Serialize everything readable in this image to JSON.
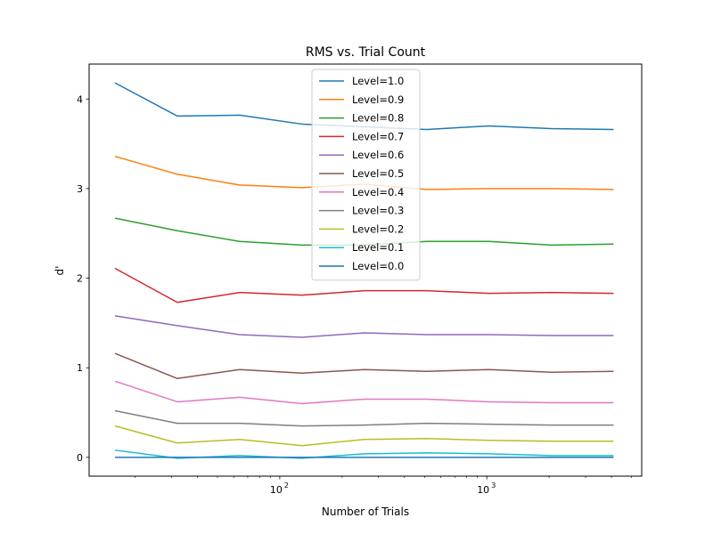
{
  "chart_data": {
    "type": "line",
    "title": "RMS vs. Trial Count",
    "xlabel": "Number of Trials",
    "ylabel": "d'",
    "xscale": "log",
    "xlim": [
      12,
      5600
    ],
    "ylim": [
      -0.21,
      4.39
    ],
    "grid": false,
    "legend_position": "top-center",
    "x": [
      16,
      32,
      64,
      128,
      256,
      512,
      1024,
      2048,
      4096
    ],
    "x_ticks": [
      {
        "value": 100,
        "base": "10",
        "exp": "2"
      },
      {
        "value": 1000,
        "base": "10",
        "exp": "3"
      }
    ],
    "y_ticks": [
      {
        "value": 0,
        "label": "0"
      },
      {
        "value": 1,
        "label": "1"
      },
      {
        "value": 2,
        "label": "2"
      },
      {
        "value": 3,
        "label": "3"
      },
      {
        "value": 4,
        "label": "4"
      }
    ],
    "series": [
      {
        "name": "Level=1.0",
        "color": "#1f77b4",
        "values": [
          4.18,
          3.81,
          3.82,
          3.72,
          3.69,
          3.66,
          3.7,
          3.67,
          3.66
        ]
      },
      {
        "name": "Level=0.9",
        "color": "#ff7f0e",
        "values": [
          3.36,
          3.16,
          3.04,
          3.01,
          3.05,
          2.99,
          3.0,
          3.0,
          2.99
        ]
      },
      {
        "name": "Level=0.8",
        "color": "#2ca02c",
        "values": [
          2.67,
          2.53,
          2.41,
          2.37,
          2.37,
          2.41,
          2.41,
          2.37,
          2.38
        ]
      },
      {
        "name": "Level=0.7",
        "color": "#d62728",
        "values": [
          2.11,
          1.73,
          1.84,
          1.81,
          1.86,
          1.86,
          1.83,
          1.84,
          1.83
        ]
      },
      {
        "name": "Level=0.6",
        "color": "#9467bd",
        "values": [
          1.58,
          1.47,
          1.37,
          1.34,
          1.39,
          1.37,
          1.37,
          1.36,
          1.36
        ]
      },
      {
        "name": "Level=0.5",
        "color": "#8c564b",
        "values": [
          1.16,
          0.88,
          0.98,
          0.94,
          0.98,
          0.96,
          0.98,
          0.95,
          0.96
        ]
      },
      {
        "name": "Level=0.4",
        "color": "#e377c2",
        "values": [
          0.85,
          0.62,
          0.67,
          0.6,
          0.65,
          0.65,
          0.62,
          0.61,
          0.61
        ]
      },
      {
        "name": "Level=0.3",
        "color": "#7f7f7f",
        "values": [
          0.52,
          0.38,
          0.38,
          0.35,
          0.36,
          0.38,
          0.37,
          0.36,
          0.36
        ]
      },
      {
        "name": "Level=0.2",
        "color": "#bcbd22",
        "values": [
          0.35,
          0.16,
          0.2,
          0.13,
          0.2,
          0.21,
          0.19,
          0.18,
          0.18
        ]
      },
      {
        "name": "Level=0.1",
        "color": "#17becf",
        "values": [
          0.08,
          -0.01,
          0.02,
          -0.01,
          0.04,
          0.05,
          0.04,
          0.02,
          0.02
        ]
      },
      {
        "name": "Level=0.0",
        "color": "#1f77b4",
        "values": [
          0.0,
          0.0,
          0.0,
          0.0,
          0.0,
          0.0,
          0.0,
          0.0,
          0.0
        ]
      }
    ]
  }
}
